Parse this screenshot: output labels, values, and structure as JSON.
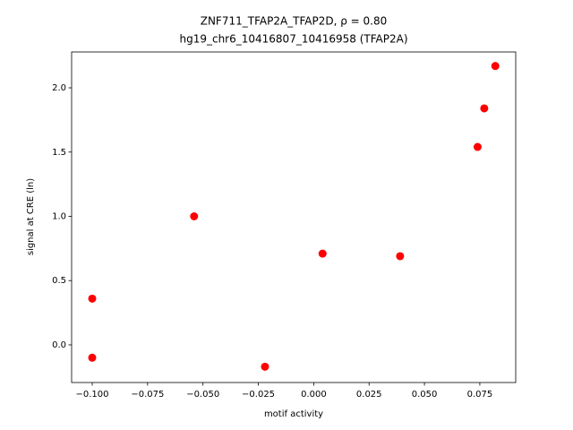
{
  "chart_data": {
    "type": "scatter",
    "title": "ZNF711_TFAP2A_TFAP2D, ρ = 0.80",
    "subtitle": "hg19_chr6_10416807_10416958 (TFAP2A)",
    "x_label": "motif activity",
    "y_label": "signal at CRE (ln)",
    "color": "#ff0000",
    "x": [
      -0.1,
      -0.1,
      -0.054,
      -0.022,
      0.004,
      0.039,
      0.074,
      0.077,
      0.082
    ],
    "values": [
      0.36,
      -0.1,
      1.0,
      -0.17,
      0.71,
      0.69,
      1.54,
      1.84,
      2.17
    ],
    "xlim": [
      -0.1093,
      0.0912
    ],
    "ylim": [
      -0.293,
      2.279
    ],
    "xticks": [
      {
        "value": -0.1,
        "label": "−0.100"
      },
      {
        "value": -0.075,
        "label": "−0.075"
      },
      {
        "value": -0.05,
        "label": "−0.050"
      },
      {
        "value": -0.025,
        "label": "−0.025"
      },
      {
        "value": 0,
        "label": "0.000"
      },
      {
        "value": 0.025,
        "label": "0.025"
      },
      {
        "value": 0.05,
        "label": "0.050"
      },
      {
        "value": 0.075,
        "label": "0.075"
      }
    ],
    "yticks": [
      {
        "value": 0,
        "label": "0.0"
      },
      0.5,
      {
        "value": 1,
        "label": "1.0"
      },
      1.5,
      {
        "value": 2,
        "label": "2.0"
      }
    ]
  }
}
